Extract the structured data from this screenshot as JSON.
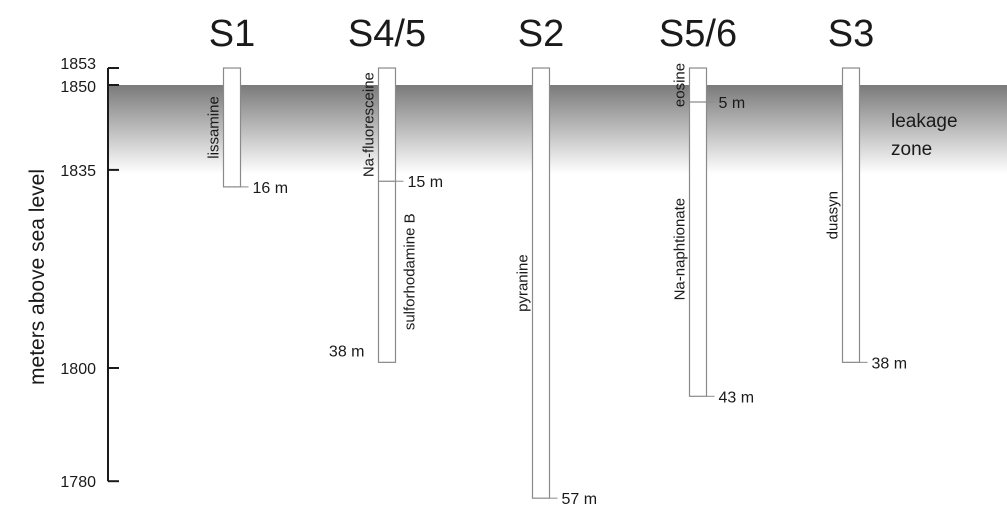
{
  "axis": {
    "label": "meters above sea level",
    "ticks": [
      1853,
      1850,
      1835,
      1800,
      1780
    ]
  },
  "leakage_zone": {
    "line1": "leakage",
    "line2": "zone",
    "top": 1850,
    "bottom": 1835
  },
  "boreholes": [
    {
      "name": "S1",
      "top": 1853,
      "bottom": 1832,
      "injections": [
        {
          "tracer": "lissamine",
          "depth_label": "16 m",
          "from": 1853,
          "to": 1832,
          "label_side": "left",
          "depth_side": "right"
        }
      ]
    },
    {
      "name": "S4/5",
      "top": 1853,
      "bottom": 1801,
      "injections": [
        {
          "tracer": "Na-fluoresceine",
          "depth_label": "15 m",
          "from": 1853,
          "to": 1833,
          "label_side": "left",
          "depth_side": "right"
        },
        {
          "tracer": "sulforhodamine B",
          "depth_label": "38 m",
          "from": 1833,
          "to": 1801,
          "label_side": "right",
          "depth_side": "left"
        }
      ]
    },
    {
      "name": "S2",
      "top": 1853,
      "bottom": 1777,
      "injections": [
        {
          "tracer": "pyranine",
          "depth_label": "57 m",
          "from": 1853,
          "to": 1777,
          "label_side": "left",
          "depth_side": "right"
        }
      ]
    },
    {
      "name": "S5/6",
      "top": 1853,
      "bottom": 1795,
      "injections": [
        {
          "tracer": "eosine",
          "depth_label": "5 m",
          "from": 1853,
          "to": 1847,
          "label_side": "left",
          "depth_side": "right"
        },
        {
          "tracer": "Na-naphtionate",
          "depth_label": "43 m",
          "from": 1847,
          "to": 1795,
          "label_side": "left",
          "depth_side": "right"
        }
      ]
    },
    {
      "name": "S3",
      "top": 1853,
      "bottom": 1801,
      "injections": [
        {
          "tracer": "duasyn",
          "depth_label": "38 m",
          "from": 1853,
          "to": 1801,
          "label_side": "left",
          "depth_side": "right"
        }
      ]
    }
  ],
  "colors": {
    "zone_dark": "#7a7a7a",
    "zone_light": "#ffffff",
    "line": "#1a1a1a",
    "tube_stroke": "#8a8a8a"
  }
}
